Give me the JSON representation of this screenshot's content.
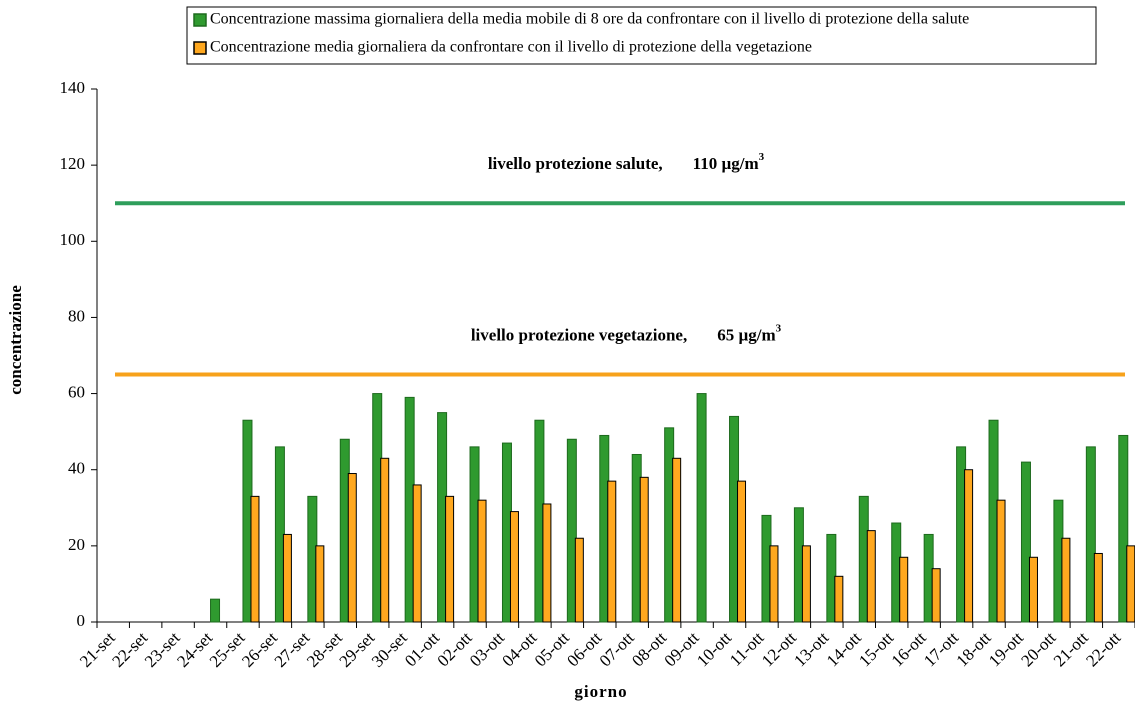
{
  "chart_data": {
    "type": "bar",
    "x_label": "giorno",
    "y_label": "concentrazione",
    "categories": [
      "21-set",
      "22-set",
      "23-set",
      "24-set",
      "25-set",
      "26-set",
      "27-set",
      "28-set",
      "29-set",
      "30-set",
      "01-ott",
      "02-ott",
      "03-ott",
      "04-ott",
      "05-ott",
      "06-ott",
      "07-ott",
      "08-ott",
      "09-ott",
      "10-ott",
      "11-ott",
      "12-ott",
      "13-ott",
      "14-ott",
      "15-ott",
      "16-ott",
      "17-ott",
      "18-ott",
      "19-ott",
      "20-ott",
      "21-ott",
      "22-ott"
    ],
    "series": [
      {
        "name": "Concentrazione massima giornaliera della media mobile di 8 ore da confrontare con il livello di protezione della salute",
        "color": "#2f9a2f",
        "values": [
          null,
          null,
          null,
          6,
          53,
          46,
          33,
          48,
          60,
          59,
          55,
          46,
          47,
          53,
          48,
          49,
          44,
          51,
          60,
          54,
          28,
          30,
          23,
          33,
          26,
          23,
          46,
          53,
          42,
          32,
          46,
          49
        ]
      },
      {
        "name": "Concentrazione media giornaliera da confrontare con il livello di protezione della vegetazione",
        "color": "#ffa81f",
        "values": [
          null,
          null,
          null,
          null,
          33,
          23,
          20,
          39,
          43,
          36,
          33,
          32,
          29,
          31,
          22,
          37,
          38,
          43,
          null,
          37,
          20,
          20,
          12,
          24,
          17,
          14,
          40,
          32,
          17,
          22,
          18,
          20
        ]
      }
    ],
    "reference_lines": [
      {
        "text": "livello protezione salute,",
        "value": 110,
        "value_label": "110 µg/m",
        "superscript": "3",
        "color": "#2e9e5b"
      },
      {
        "text": "livello protezione vegetazione,",
        "value": 65,
        "value_label": "65 µg/m",
        "superscript": "3",
        "color": "#f7a21b"
      }
    ],
    "ylim": [
      0,
      140
    ],
    "yticks": [
      0,
      20,
      40,
      60,
      80,
      100,
      120,
      140
    ]
  }
}
